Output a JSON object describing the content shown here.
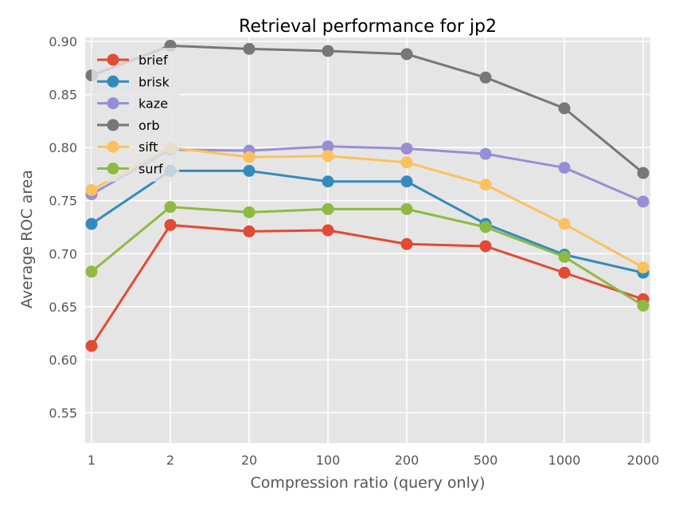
{
  "chart_data": {
    "type": "line",
    "title": "Retrieval performance for jp2",
    "xlabel": "Compression ratio (query only)",
    "ylabel": "Average ROC area",
    "categories": [
      "1",
      "2",
      "20",
      "100",
      "200",
      "500",
      "1000",
      "2000"
    ],
    "ylim": [
      0.52,
      0.9
    ],
    "yticks": [
      "0.55",
      "0.60",
      "0.65",
      "0.70",
      "0.75",
      "0.80",
      "0.85",
      "0.90"
    ],
    "grid": true,
    "legend_position": "top-left",
    "series": [
      {
        "name": "brief",
        "color": "#E24A33",
        "values": [
          0.613,
          0.727,
          0.721,
          0.722,
          0.709,
          0.707,
          0.682,
          0.657
        ]
      },
      {
        "name": "brisk",
        "color": "#348ABD",
        "values": [
          0.728,
          0.778,
          0.778,
          0.768,
          0.768,
          0.728,
          0.699,
          0.682
        ]
      },
      {
        "name": "kaze",
        "color": "#988ED5",
        "values": [
          0.756,
          0.798,
          0.797,
          0.801,
          0.799,
          0.794,
          0.781,
          0.749
        ]
      },
      {
        "name": "orb",
        "color": "#777777",
        "values": [
          0.868,
          0.896,
          0.893,
          0.891,
          0.888,
          0.866,
          0.837,
          0.776
        ]
      },
      {
        "name": "sift",
        "color": "#FBC15E",
        "values": [
          0.76,
          0.8,
          0.791,
          0.792,
          0.786,
          0.765,
          0.728,
          0.687
        ]
      },
      {
        "name": "surf",
        "color": "#8EBA42",
        "values": [
          0.683,
          0.744,
          0.739,
          0.742,
          0.742,
          0.725,
          0.697,
          0.651
        ]
      }
    ]
  }
}
